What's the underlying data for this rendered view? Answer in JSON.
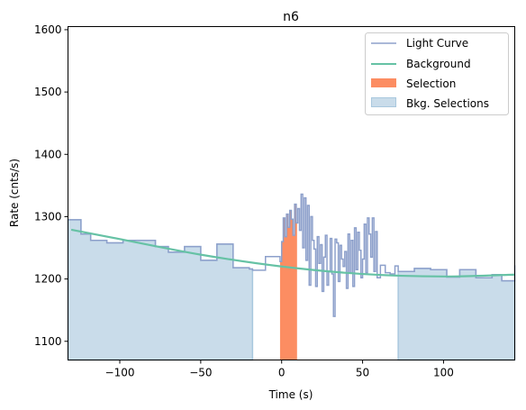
{
  "chart_data": {
    "type": "line",
    "title": "n6",
    "xlabel": "Time (s)",
    "ylabel": "Rate (cnts/s)",
    "xlim": [
      -132,
      144
    ],
    "ylim": [
      1070,
      1605
    ],
    "xticks": [
      -100,
      -50,
      0,
      50,
      100
    ],
    "yticks": [
      1100,
      1200,
      1300,
      1400,
      1500,
      1600
    ],
    "xtick_labels": [
      "−100",
      "−50",
      "0",
      "50",
      "100"
    ],
    "ytick_labels": [
      "1100",
      "1200",
      "1300",
      "1400",
      "1500",
      "1600"
    ],
    "grid": false,
    "legend_position": "top-right",
    "legend": [
      {
        "label": "Light Curve",
        "kind": "line",
        "color": "#8da0cb"
      },
      {
        "label": "Background",
        "kind": "line",
        "color": "#66c2a5"
      },
      {
        "label": "Selection",
        "kind": "patch",
        "color": "#fc8d62"
      },
      {
        "label": "Bkg. Selections",
        "kind": "patch",
        "color": "#c9dcea"
      }
    ],
    "colors": {
      "light_curve": "#8da0cb",
      "background": "#66c2a5",
      "selection": "#fc8d62",
      "bkg_selection": "#c9dcea",
      "bkg_selection_edge": "#a9c8de"
    },
    "light_curve": {
      "x_edges": [
        -132,
        -124,
        -118,
        -108,
        -98,
        -88,
        -78,
        -70,
        -60,
        -50,
        -40,
        -30,
        -20,
        -18,
        -10,
        -1,
        0,
        1,
        2,
        3,
        4,
        5,
        6,
        7,
        8,
        9,
        10,
        11,
        12,
        13,
        14,
        15,
        16,
        17,
        18,
        19,
        20,
        21,
        22,
        23,
        24,
        25,
        26,
        27,
        28,
        29,
        30,
        31,
        32,
        33,
        34,
        35,
        36,
        37,
        38,
        39,
        40,
        41,
        42,
        43,
        44,
        45,
        46,
        47,
        48,
        49,
        50,
        51,
        52,
        53,
        54,
        55,
        56,
        57,
        58,
        59,
        61,
        64,
        67,
        70,
        72,
        82,
        92,
        102,
        110,
        120,
        130,
        136,
        144
      ],
      "values": [
        1295,
        1272,
        1262,
        1258,
        1262,
        1262,
        1252,
        1243,
        1252,
        1230,
        1256,
        1218,
        1216,
        1214,
        1236,
        1228,
        1260,
        1298,
        1268,
        1304,
        1283,
        1310,
        1296,
        1270,
        1320,
        1290,
        1313,
        1278,
        1336,
        1250,
        1330,
        1230,
        1318,
        1190,
        1300,
        1262,
        1248,
        1188,
        1268,
        1225,
        1255,
        1180,
        1235,
        1270,
        1190,
        1212,
        1265,
        1208,
        1140,
        1264,
        1258,
        1196,
        1254,
        1232,
        1220,
        1244,
        1185,
        1272,
        1210,
        1262,
        1188,
        1282,
        1215,
        1275,
        1246,
        1202,
        1232,
        1288,
        1210,
        1298,
        1272,
        1235,
        1298,
        1212,
        1276,
        1202,
        1222,
        1210,
        1208,
        1221,
        1212,
        1217,
        1215,
        1203,
        1215,
        1202,
        1207,
        1197,
        1222
      ]
    },
    "background_curve": {
      "x": [
        -130,
        -100,
        -50,
        0,
        50,
        100,
        144
      ],
      "y": [
        1279,
        1264,
        1239,
        1220,
        1208,
        1204,
        1207
      ]
    },
    "selection_interval": [
      -1,
      9.5
    ],
    "bkg_selection_intervals": [
      [
        -132,
        -18
      ],
      [
        72,
        144
      ]
    ]
  }
}
